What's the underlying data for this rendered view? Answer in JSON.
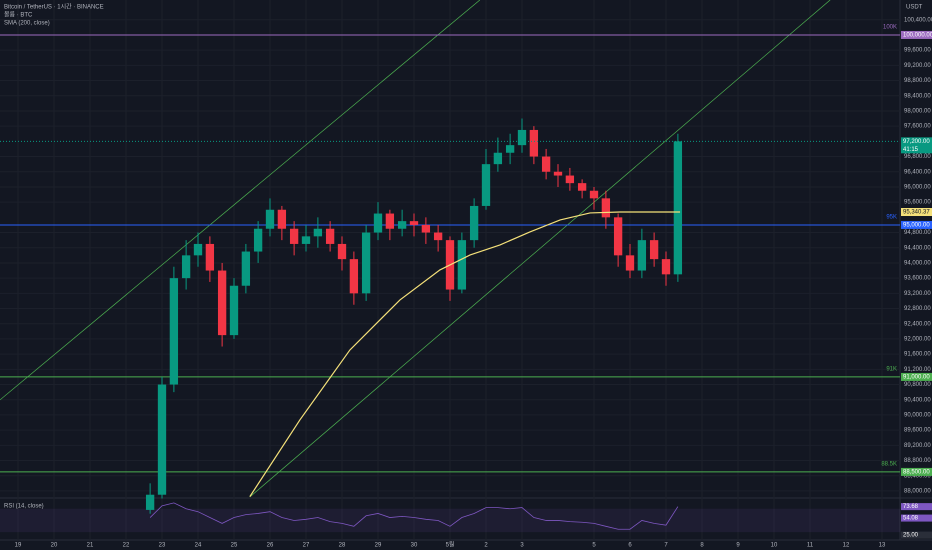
{
  "chart_data": {
    "type": "candlestick",
    "title": "Bitcoin / TetherUS · 1시간 · BINANCE",
    "volume_label": "볼륨 · BTC",
    "currency": "USDT",
    "up_color": "#089981",
    "down_color": "#f23645",
    "grid": true,
    "xlim": [
      -0.5,
      24.5
    ],
    "ylim": [
      87840,
      100920
    ],
    "x": [
      3.67,
      4,
      4.33,
      4.67,
      5,
      5.33,
      5.67,
      6,
      6.33,
      6.67,
      7,
      7.33,
      7.67,
      8,
      8.33,
      8.67,
      9,
      9.33,
      9.67,
      10,
      10.33,
      10.67,
      11,
      11.33,
      11.67,
      12,
      12.33,
      12.67,
      13,
      13.33,
      13.67,
      14,
      14.33,
      14.67,
      15,
      15.33,
      15.67,
      16,
      16.33,
      16.67,
      17,
      17.33,
      17.67,
      18,
      18.33
    ],
    "open": [
      87500,
      87900,
      90800,
      93600,
      94200,
      94500,
      93800,
      92100,
      93400,
      94300,
      94900,
      95400,
      94900,
      94500,
      94700,
      94900,
      94500,
      94100,
      93200,
      94800,
      95300,
      94900,
      95100,
      95000,
      94800,
      94600,
      93300,
      94600,
      95500,
      96600,
      96900,
      97100,
      97500,
      96800,
      96400,
      96300,
      96100,
      95900,
      95700,
      95200,
      94200,
      93800,
      94600,
      94100,
      93700
    ],
    "high": [
      88200,
      91000,
      93900,
      94600,
      94800,
      94700,
      94000,
      93600,
      94500,
      95100,
      95700,
      95500,
      95100,
      95000,
      95200,
      95100,
      94700,
      94300,
      95000,
      95600,
      95400,
      95400,
      95300,
      95200,
      95000,
      94700,
      94800,
      95700,
      97000,
      97300,
      97400,
      97800,
      97600,
      97000,
      96600,
      96500,
      96200,
      96000,
      95900,
      95300,
      94500,
      94900,
      94800,
      94300,
      97400
    ],
    "low": [
      87400,
      87800,
      90600,
      93300,
      93900,
      93500,
      91800,
      92000,
      93200,
      94000,
      94700,
      94600,
      94200,
      94300,
      94400,
      94300,
      93800,
      92900,
      93000,
      94600,
      94600,
      94700,
      94700,
      94500,
      94300,
      93000,
      93200,
      94400,
      95400,
      96400,
      96600,
      96900,
      96600,
      96200,
      96000,
      95900,
      95700,
      95400,
      94900,
      93900,
      93600,
      93600,
      93900,
      93400,
      93500
    ],
    "close": [
      87900,
      90800,
      93600,
      94200,
      94500,
      93800,
      92100,
      93400,
      94300,
      94900,
      95400,
      94900,
      94500,
      94700,
      94900,
      94500,
      94100,
      93200,
      94800,
      95300,
      94900,
      95100,
      95000,
      94800,
      94600,
      93300,
      94600,
      95500,
      96600,
      96900,
      97100,
      97500,
      96800,
      96400,
      96300,
      96100,
      95900,
      95700,
      95200,
      94200,
      93800,
      94600,
      94100,
      93700,
      97200
    ],
    "yticks": [
      {
        "value": 88000,
        "label": "88,000.00"
      },
      {
        "value": 88400,
        "label": "88,400.00"
      },
      {
        "value": 88800,
        "label": "88,800.00"
      },
      {
        "value": 89200,
        "label": "89,200.00"
      },
      {
        "value": 89600,
        "label": "89,600.00"
      },
      {
        "value": 90000,
        "label": "90,000.00"
      },
      {
        "value": 90400,
        "label": "90,400.00"
      },
      {
        "value": 90800,
        "label": "90,800.00"
      },
      {
        "value": 91200,
        "label": "91,200.00"
      },
      {
        "value": 91600,
        "label": "91,600.00"
      },
      {
        "value": 92000,
        "label": "92,000.00"
      },
      {
        "value": 92400,
        "label": "92,400.00"
      },
      {
        "value": 92800,
        "label": "92,800.00"
      },
      {
        "value": 93200,
        "label": "93,200.00"
      },
      {
        "value": 93600,
        "label": "93,600.00"
      },
      {
        "value": 94000,
        "label": "94,000.00"
      },
      {
        "value": 94400,
        "label": "94,400.00"
      },
      {
        "value": 94800,
        "label": "94,800.00"
      },
      {
        "value": 95600,
        "label": "95,600.00"
      },
      {
        "value": 96000,
        "label": "96,000.00"
      },
      {
        "value": 96400,
        "label": "96,400.00"
      },
      {
        "value": 96800,
        "label": "96,800.00"
      },
      {
        "value": 97600,
        "label": "97,600.00"
      },
      {
        "value": 98000,
        "label": "98,000.00"
      },
      {
        "value": 98400,
        "label": "98,400.00"
      },
      {
        "value": 98800,
        "label": "98,800.00"
      },
      {
        "value": 99200,
        "label": "99,200.00"
      },
      {
        "value": 99600,
        "label": "99,600.00"
      },
      {
        "value": 100400,
        "label": "100,400.00"
      }
    ],
    "xticks": [
      {
        "value": 0,
        "label": "19"
      },
      {
        "value": 1,
        "label": "20"
      },
      {
        "value": 2,
        "label": "21"
      },
      {
        "value": 3,
        "label": "22"
      },
      {
        "value": 4,
        "label": "23"
      },
      {
        "value": 5,
        "label": "24"
      },
      {
        "value": 6,
        "label": "25"
      },
      {
        "value": 7,
        "label": "26"
      },
      {
        "value": 8,
        "label": "27"
      },
      {
        "value": 9,
        "label": "28"
      },
      {
        "value": 10,
        "label": "29"
      },
      {
        "value": 11,
        "label": "30"
      },
      {
        "value": 12,
        "label": "5월"
      },
      {
        "value": 13,
        "label": "2"
      },
      {
        "value": 14,
        "label": "3"
      },
      {
        "value": 16,
        "label": "5"
      },
      {
        "value": 17,
        "label": "6"
      },
      {
        "value": 18,
        "label": "7"
      },
      {
        "value": 19,
        "label": "8"
      },
      {
        "value": 20,
        "label": "9"
      },
      {
        "value": 21,
        "label": "10"
      },
      {
        "value": 22,
        "label": "11"
      },
      {
        "value": 23,
        "label": "12"
      },
      {
        "value": 24,
        "label": "13"
      }
    ],
    "sma": {
      "name": "SMA (200, close)",
      "color": "#f5e17a",
      "x": [
        6.44,
        7.83,
        9.22,
        10.61,
        11.72,
        12.56,
        13.39,
        14.22,
        15.06,
        15.89,
        16.72,
        17.56,
        18.39
      ],
      "values": [
        87850,
        89868,
        91710,
        93026,
        93816,
        94211,
        94474,
        94816,
        95132,
        95316,
        95340,
        95340,
        95340.37
      ],
      "tag": {
        "value": 95340.37,
        "label": "95,340.37"
      }
    },
    "last_price": {
      "value": 97200,
      "label": "97,200.00"
    },
    "countdown": "41:15",
    "levels": [
      {
        "label": "100K",
        "value": 100000,
        "color": "#9c6bc0",
        "price_label": {
          "value": 100000,
          "label": "100,000.00"
        }
      },
      {
        "label": "95K",
        "value": 95000,
        "color": "#2962ff",
        "price_label": {
          "value": 95000,
          "label": "95,000.00"
        }
      },
      {
        "label": "91K",
        "value": 91000,
        "color": "#4caf50",
        "price_label": {
          "value": 91000,
          "label": "91,000.00"
        }
      },
      {
        "label": "88.5K",
        "value": 88500,
        "color": "#4caf50",
        "price_label": {
          "value": 88500,
          "label": "88,500.00"
        }
      }
    ],
    "trendlines": [
      {
        "color": "#4caf50",
        "x": [
          -0.5,
          12.83
        ],
        "values": [
          90395,
          100921
        ]
      },
      {
        "color": "#4caf50",
        "x": [
          6.44,
          22.56
        ],
        "values": [
          87842,
          100921
        ]
      }
    ],
    "rsi": {
      "title": "RSI (14, close)",
      "color": "#7e57c2",
      "ylim": [
        20,
        85
      ],
      "values": [
        55,
        75,
        80,
        70,
        65,
        55,
        45,
        55,
        60,
        62,
        65,
        55,
        50,
        52,
        55,
        48,
        45,
        40,
        58,
        62,
        55,
        57,
        55,
        52,
        50,
        40,
        55,
        62,
        72,
        72,
        70,
        72,
        55,
        50,
        50,
        48,
        47,
        45,
        40,
        35,
        35,
        50,
        45,
        42,
        73.68
      ],
      "tags": [
        {
          "value": 73.68,
          "label": "73.68"
        },
        {
          "value": 54.08,
          "label": "54.08"
        },
        {
          "value": 25,
          "label": "25.00"
        }
      ]
    }
  }
}
